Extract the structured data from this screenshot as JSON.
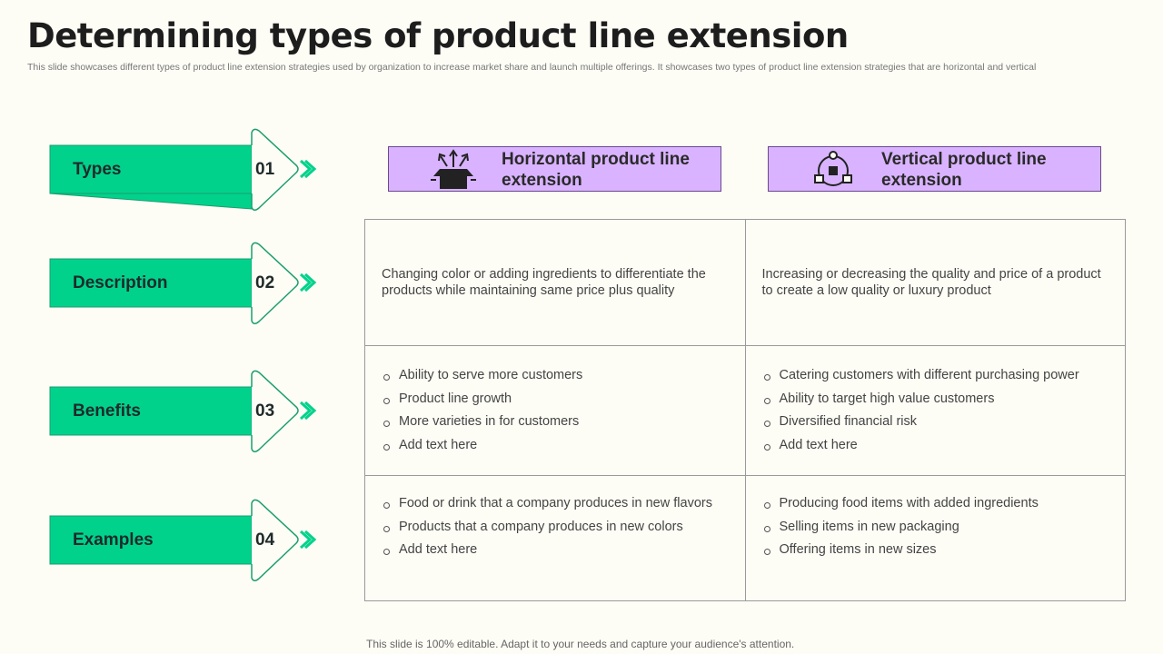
{
  "title": "Determining types of product line extension",
  "subtitle": "This slide showcases different types of product line extension strategies used by organization to increase market share and launch multiple offerings. It showcases two types of product line extension strategies that are horizontal and vertical",
  "rows": [
    {
      "label": "Types",
      "number": "01"
    },
    {
      "label": "Description",
      "number": "02"
    },
    {
      "label": "Benefits",
      "number": "03"
    },
    {
      "label": "Examples",
      "number": "04"
    }
  ],
  "columns": [
    {
      "title": "Horizontal product line extension",
      "icon": "box-arrows-icon"
    },
    {
      "title": "Vertical product line extension",
      "icon": "product-network-icon"
    }
  ],
  "description": [
    "Changing color or adding ingredients to differentiate the products while maintaining same price plus quality",
    "Increasing or decreasing the quality and price of a product to create a low quality or luxury product"
  ],
  "benefits": [
    [
      "Ability to serve more customers",
      "Product line growth",
      "More varieties in for customers",
      "Add text here"
    ],
    [
      "Catering customers with different purchasing power",
      "Ability to target high value customers",
      "Diversified financial risk",
      "Add text here"
    ]
  ],
  "examples": [
    [
      "Food or drink that a company produces in new flavors",
      "Products that a company produces in new colors",
      "Add text here"
    ],
    [
      "Producing food items with added ingredients",
      "Selling items in new packaging",
      "Offering items in new sizes"
    ]
  ],
  "colors": {
    "green": "#00d28c",
    "green_border": "#1a9e6e",
    "purple": "#d9b3ff",
    "background": "#fdfcf5"
  },
  "footer": "This slide is 100% editable. Adapt it to your needs and capture your audience's attention."
}
